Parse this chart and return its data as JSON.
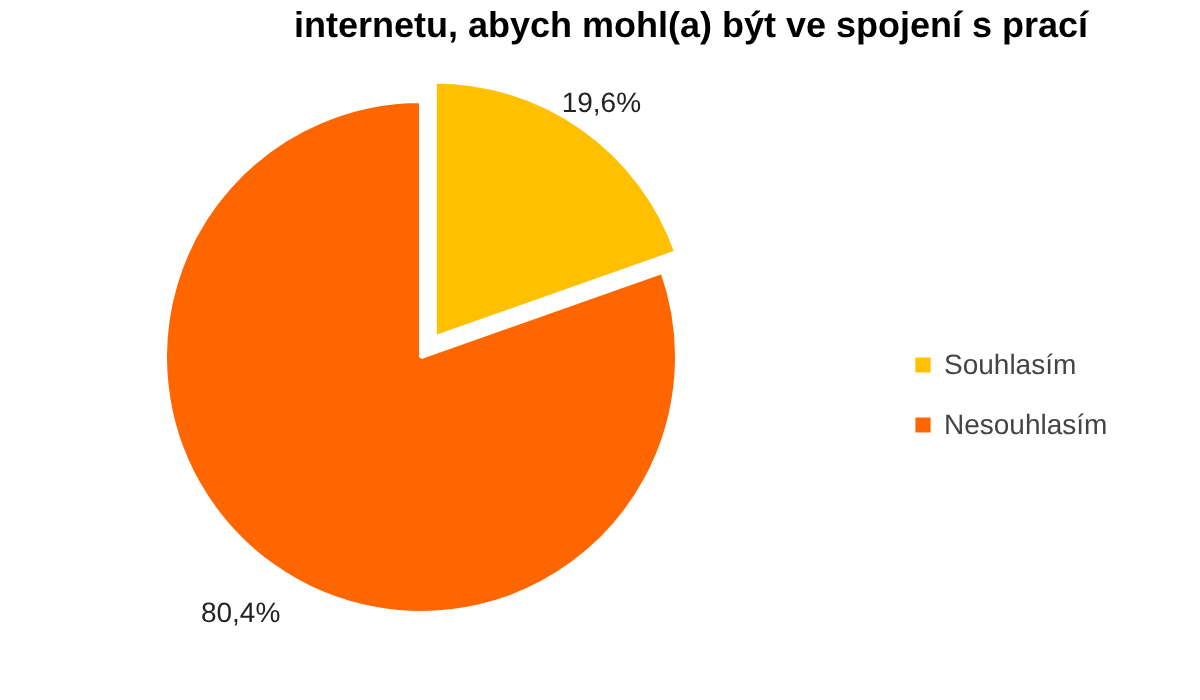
{
  "chart_data": {
    "type": "pie",
    "title": "internetu, abych mohl(a) být ve spojení s prací",
    "categories": [
      "Souhlasím",
      "Nesouhlasím"
    ],
    "values": [
      19.6,
      80.4
    ],
    "colors": [
      "#ffc000",
      "#ff6600"
    ],
    "value_labels": [
      "19,6%",
      "80,4%"
    ],
    "legend": "right"
  }
}
